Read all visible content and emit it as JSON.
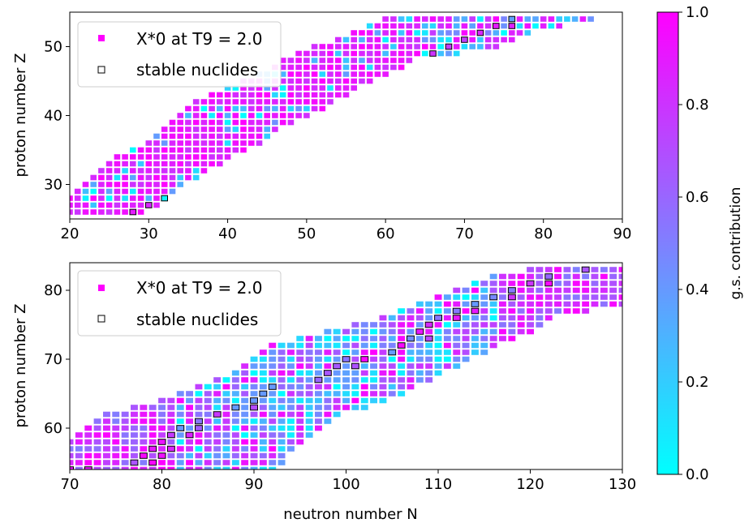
{
  "chart_data": [
    {
      "type": "heatmap",
      "panel": "top",
      "xlim": [
        20,
        90
      ],
      "ylim": [
        25,
        55
      ],
      "x_ticks": [
        20,
        30,
        40,
        50,
        60,
        70,
        80,
        90
      ],
      "y_ticks": [
        30,
        40,
        50
      ],
      "xlabel": "",
      "ylabel": "proton number Z",
      "legend": {
        "location": "upper-left",
        "entries": [
          "X*0 at T9 = 2.0",
          "stable nuclides"
        ]
      },
      "grid": false,
      "band": [
        {
          "z": 26,
          "n_min": 20,
          "n_max": 29
        },
        {
          "z": 28,
          "n_min": 20,
          "n_max": 32
        },
        {
          "z": 30,
          "n_min": 22,
          "n_max": 34
        },
        {
          "z": 32,
          "n_min": 24,
          "n_max": 37
        },
        {
          "z": 34,
          "n_min": 26,
          "n_max": 40
        },
        {
          "z": 36,
          "n_min": 30,
          "n_max": 44
        },
        {
          "z": 38,
          "n_min": 32,
          "n_max": 46
        },
        {
          "z": 40,
          "n_min": 34,
          "n_max": 50
        },
        {
          "z": 42,
          "n_min": 36,
          "n_max": 53
        },
        {
          "z": 44,
          "n_min": 40,
          "n_max": 56
        },
        {
          "z": 46,
          "n_min": 44,
          "n_max": 60
        },
        {
          "z": 48,
          "n_min": 47,
          "n_max": 63
        },
        {
          "z": 50,
          "n_min": 51,
          "n_max": 74
        },
        {
          "z": 52,
          "n_min": 56,
          "n_max": 78
        },
        {
          "z": 54,
          "n_min": 60,
          "n_max": 86
        }
      ],
      "stable_line": [
        [
          28,
          26
        ],
        [
          32,
          28
        ],
        [
          36,
          30
        ],
        [
          40,
          32
        ],
        [
          44,
          34
        ],
        [
          48,
          36
        ],
        [
          50,
          38
        ],
        [
          52,
          40
        ],
        [
          54,
          42
        ],
        [
          58,
          44
        ],
        [
          62,
          46
        ],
        [
          64,
          48
        ],
        [
          68,
          50
        ],
        [
          72,
          52
        ],
        [
          76,
          54
        ],
        [
          78,
          55
        ]
      ]
    },
    {
      "type": "heatmap",
      "panel": "bottom",
      "xlim": [
        70,
        130
      ],
      "ylim": [
        54,
        84
      ],
      "x_ticks": [
        70,
        80,
        90,
        100,
        110,
        120,
        130
      ],
      "y_ticks": [
        60,
        70,
        80
      ],
      "xlabel": "neutron number N",
      "ylabel": "proton number Z",
      "legend": {
        "location": "upper-left",
        "entries": [
          "X*0 at T9 = 2.0",
          "stable nuclides"
        ]
      },
      "grid": false,
      "band": [
        {
          "z": 54,
          "n_min": 70,
          "n_max": 92
        },
        {
          "z": 56,
          "n_min": 70,
          "n_max": 93
        },
        {
          "z": 58,
          "n_min": 70,
          "n_max": 95
        },
        {
          "z": 60,
          "n_min": 72,
          "n_max": 97
        },
        {
          "z": 62,
          "n_min": 74,
          "n_max": 99
        },
        {
          "z": 64,
          "n_min": 80,
          "n_max": 104
        },
        {
          "z": 66,
          "n_min": 84,
          "n_max": 107
        },
        {
          "z": 68,
          "n_min": 88,
          "n_max": 110
        },
        {
          "z": 70,
          "n_min": 90,
          "n_max": 113
        },
        {
          "z": 72,
          "n_min": 92,
          "n_max": 116
        },
        {
          "z": 74,
          "n_min": 98,
          "n_max": 120
        },
        {
          "z": 76,
          "n_min": 104,
          "n_max": 122
        },
        {
          "z": 78,
          "n_min": 108,
          "n_max": 130
        },
        {
          "z": 80,
          "n_min": 112,
          "n_max": 130
        },
        {
          "z": 82,
          "n_min": 116,
          "n_max": 130
        },
        {
          "z": 83,
          "n_min": 120,
          "n_max": 130
        }
      ],
      "stable_line": [
        [
          70,
          54
        ],
        [
          76,
          54
        ],
        [
          78,
          56
        ],
        [
          80,
          58
        ],
        [
          82,
          60
        ],
        [
          86,
          62
        ],
        [
          90,
          64
        ],
        [
          92,
          66
        ],
        [
          96,
          66
        ],
        [
          100,
          70
        ],
        [
          104,
          70
        ],
        [
          106,
          72
        ],
        [
          108,
          74
        ],
        [
          110,
          76
        ],
        [
          114,
          78
        ],
        [
          118,
          80
        ],
        [
          122,
          82
        ],
        [
          126,
          83
        ]
      ]
    }
  ],
  "colorbar": {
    "label": "g.s. contribution",
    "range": [
      0.0,
      1.0
    ],
    "ticks": [
      "0.0",
      "0.2",
      "0.4",
      "0.6",
      "0.8",
      "1.0"
    ],
    "tick_values": [
      0.0,
      0.2,
      0.4,
      0.6,
      0.8,
      1.0
    ],
    "colormap": "cool",
    "color_low": "#00ffff",
    "color_high": "#ff00ff"
  },
  "legend_marker_color": "#ff00ff",
  "stable_marker_edge": "#000000"
}
